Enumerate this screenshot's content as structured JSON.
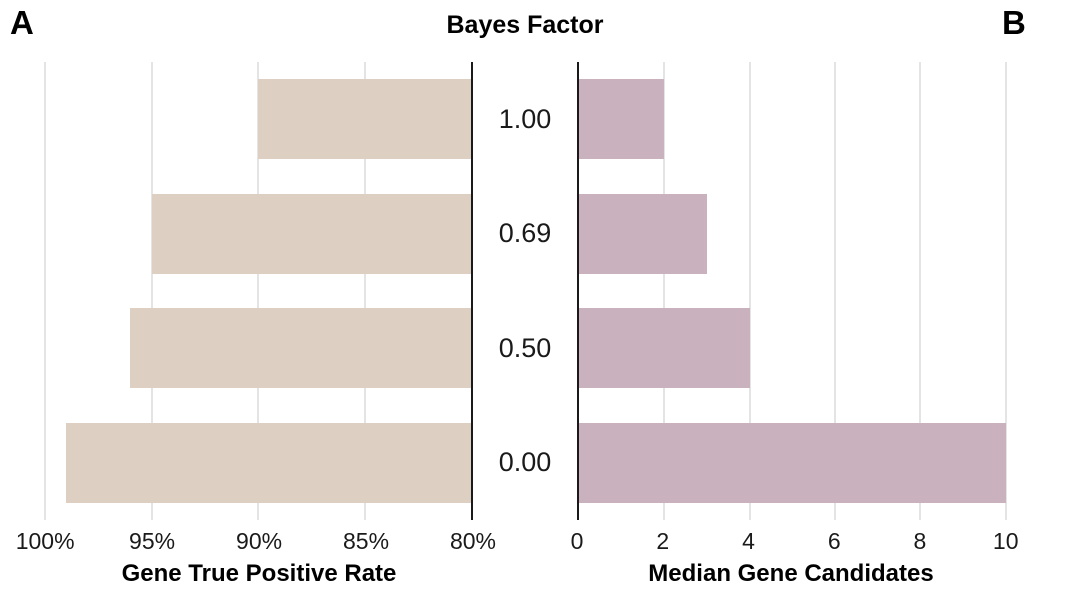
{
  "figure": {
    "panel_a_label": "A",
    "panel_b_label": "B",
    "center_axis_title": "Bayes Factor"
  },
  "chart_data": [
    {
      "type": "bar",
      "panel": "A",
      "orientation": "horizontal",
      "anchor": "right",
      "categories": [
        "1.00",
        "0.69",
        "0.50",
        "0.00"
      ],
      "values": [
        90,
        95,
        96,
        99
      ],
      "xlabel": "Gene True Positive Rate",
      "ylabel": "Bayes Factor",
      "ticks": [
        100,
        95,
        90,
        85,
        80
      ],
      "tick_labels": [
        "100%",
        "95%",
        "90%",
        "85%",
        "80%"
      ],
      "xlim": [
        100.8,
        80
      ],
      "axis_reversed": true,
      "grid": true,
      "legend": "none",
      "bar_color": "#ddd0c2"
    },
    {
      "type": "bar",
      "panel": "B",
      "orientation": "horizontal",
      "anchor": "left",
      "categories": [
        "1.00",
        "0.69",
        "0.50",
        "0.00"
      ],
      "values": [
        2,
        3,
        4,
        10
      ],
      "xlabel": "Median Gene Candidates",
      "ylabel": "Bayes Factor",
      "ticks": [
        0,
        2,
        4,
        6,
        8,
        10
      ],
      "tick_labels": [
        "0",
        "2",
        "4",
        "6",
        "8",
        "10"
      ],
      "xlim": [
        0,
        10.8
      ],
      "axis_reversed": false,
      "grid": true,
      "legend": "none",
      "bar_color": "#c9b2bd"
    }
  ],
  "colors": {
    "background": "#ffffff",
    "gridline": "#e4e4e4",
    "axis_line": "#1a1a1a",
    "text": "#1a1a1a",
    "panel_a_bar": "#ddd0c2",
    "panel_b_bar": "#c9b2bd"
  }
}
